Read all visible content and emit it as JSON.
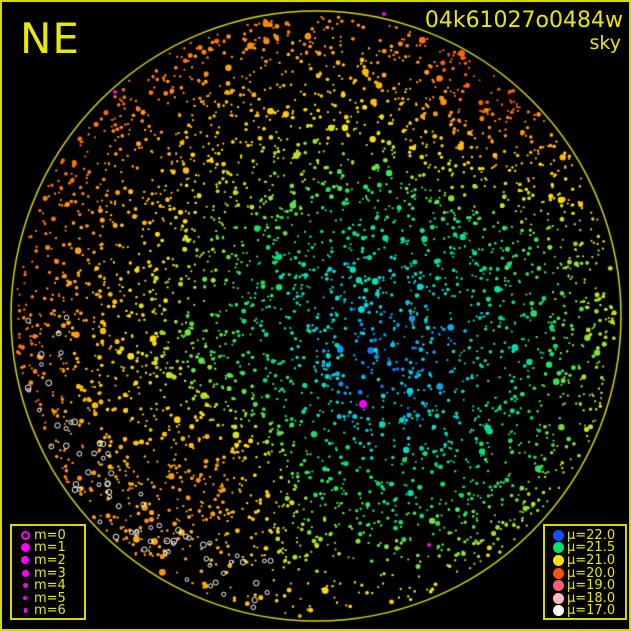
{
  "header": {
    "direction": "NE",
    "frame_id": "04k61027o0484w",
    "map_type": "sky"
  },
  "colors": {
    "frame": "#d8d800",
    "text": "#e8e800",
    "magnitude_symbol": "#ff00ff"
  },
  "magnitude_legend": [
    {
      "label": "m=0",
      "style": "hollow"
    },
    {
      "label": "m=1"
    },
    {
      "label": "m=2"
    },
    {
      "label": "m=3"
    },
    {
      "label": "m=4"
    },
    {
      "label": "m=5"
    },
    {
      "label": "m=6"
    }
  ],
  "brightness_legend": [
    {
      "label": "μ=22.0",
      "color": "#1050ff"
    },
    {
      "label": "μ=21.5",
      "color": "#00e070"
    },
    {
      "label": "μ=21.0",
      "color": "#ffe000"
    },
    {
      "label": "μ=20.0",
      "color": "#ff5010"
    },
    {
      "label": "μ=19.0",
      "color": "#ff6070"
    },
    {
      "label": "μ=18.0",
      "color": "#ffb8c8"
    },
    {
      "label": "μ=17.0",
      "color": "#ffffff"
    }
  ]
}
